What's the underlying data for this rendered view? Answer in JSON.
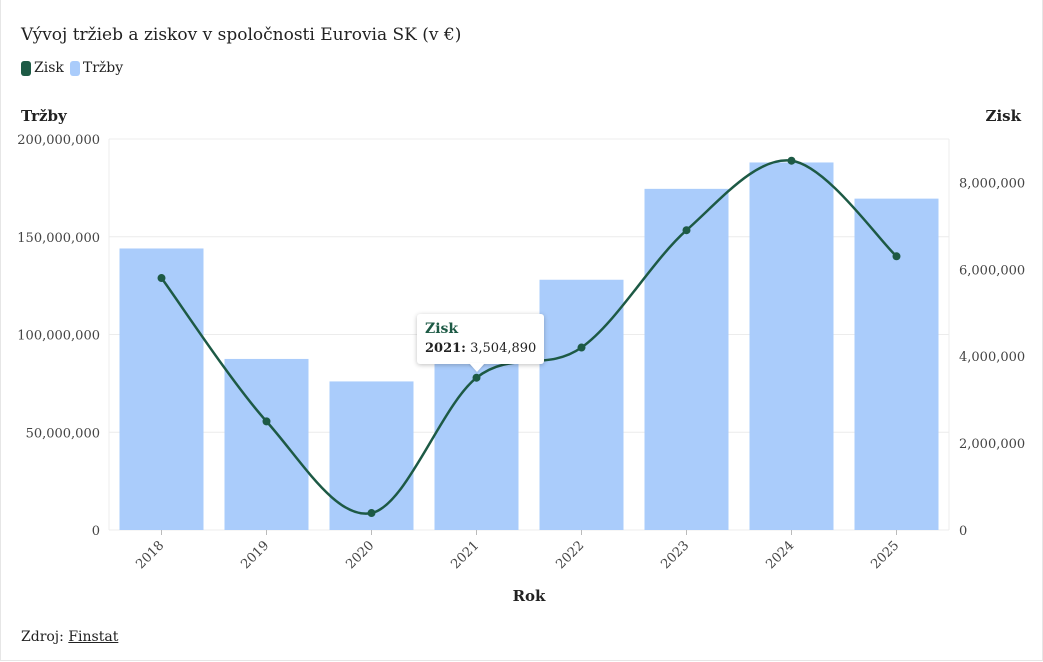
{
  "chart_data": {
    "type": "bar+line",
    "title": "Vývoj tržieb a ziskov v spoločnosti Eurovia SK (v €)",
    "categories": [
      "2018",
      "2019",
      "2020",
      "2021",
      "2022",
      "2023",
      "2024",
      "2025"
    ],
    "series": [
      {
        "name": "Tržby",
        "type": "bar",
        "axis": "left",
        "color": "#aaccfb",
        "values": [
          144000000,
          87500000,
          76000000,
          89000000,
          128000000,
          174500000,
          188000000,
          169500000
        ]
      },
      {
        "name": "Zisk",
        "type": "line",
        "axis": "right",
        "color": "#1d5a45",
        "values": [
          5800000,
          2500000,
          390000,
          3504890,
          4200000,
          6900000,
          8500000,
          6300000
        ]
      }
    ],
    "xlabel": "Rok",
    "ylabel_left": "Tržby",
    "ylabel_right": "Zisk",
    "ylim_left": [
      0,
      200000000
    ],
    "ylim_right": [
      0,
      9000000
    ],
    "yticks_left": [
      "0",
      "50,000,000",
      "100,000,000",
      "150,000,000",
      "200,000,000"
    ],
    "yticks_right": [
      "0",
      "2,000,000",
      "4,000,000",
      "6,000,000",
      "8,000,000"
    ],
    "grid": true,
    "legend_position": "top-left"
  },
  "legend": {
    "zisk_label": "Zisk",
    "trzby_label": "Tržby",
    "zisk_color": "#1d5a45",
    "trzby_color": "#aaccfb"
  },
  "tooltip": {
    "series": "Zisk",
    "year": "2021:",
    "value": "3,504,890"
  },
  "source": {
    "label": "Zdroj:",
    "link_text": "Finstat"
  }
}
